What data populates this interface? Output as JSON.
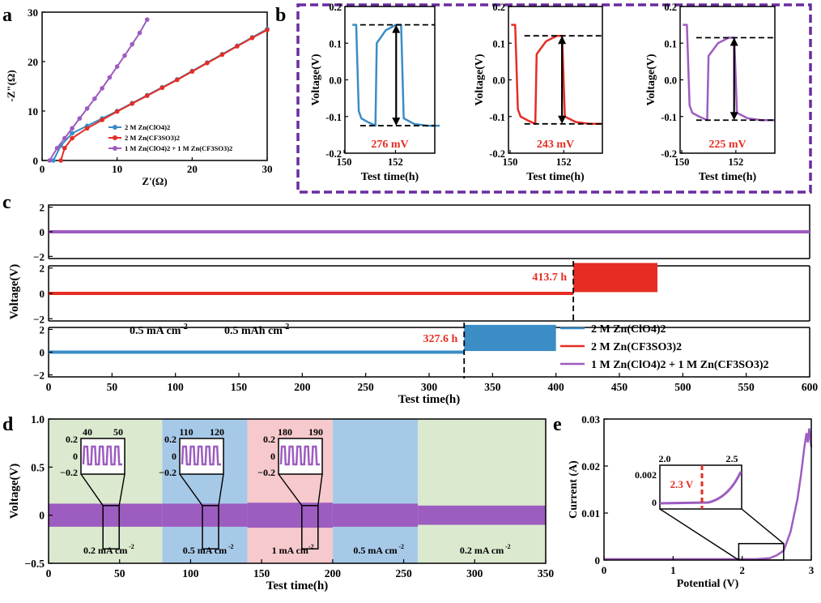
{
  "colors": {
    "blue": "#3a8dc5",
    "red": "#e52d23",
    "purple": "#9d5cc0",
    "dash_box": "#6a2ca0",
    "green_bg": "#dbe9cf",
    "blue_bg": "#a7c9e8",
    "pink_bg": "#f6c9cc"
  },
  "panel_labels": [
    "a",
    "b",
    "c",
    "d",
    "e"
  ],
  "chart_data": [
    {
      "panel": "a",
      "type": "scatter",
      "xlabel": "Z'(Ω)",
      "ylabel": "-Z\"(Ω)",
      "xlim": [
        0,
        30
      ],
      "ylim": [
        0,
        30
      ],
      "xticks": [
        "0",
        "10",
        "20",
        "30"
      ],
      "yticks": [
        "0",
        "10",
        "20",
        "30"
      ],
      "series": [
        {
          "name": "2 M Zn(ClO4)2",
          "color": "blue",
          "x": [
            1.5,
            2.5,
            4,
            6,
            8,
            10,
            12,
            14,
            16,
            18,
            20,
            22,
            24,
            26,
            28,
            30
          ],
          "y": [
            0,
            3,
            5.5,
            7,
            8.5,
            10,
            11.6,
            13.2,
            14.8,
            16.4,
            18.1,
            19.8,
            21.5,
            23.2,
            24.9,
            26.6
          ]
        },
        {
          "name": "2 M Zn(CF3SO3)2",
          "color": "red",
          "x": [
            2.5,
            3,
            4,
            6,
            8,
            10,
            12,
            14,
            16,
            18,
            20,
            22,
            24,
            26,
            28,
            30
          ],
          "y": [
            0,
            2.5,
            4.5,
            6.5,
            8.2,
            9.9,
            11.5,
            13.1,
            14.7,
            16.3,
            18,
            19.7,
            21.4,
            23.1,
            24.8,
            26.4
          ]
        },
        {
          "name": "1 M Zn(ClO4)2 + 1 M Zn(CF3SO3)2",
          "color": "purple",
          "x": [
            1,
            2,
            3,
            4,
            5,
            6,
            7,
            8,
            9,
            10,
            11,
            12,
            13,
            14
          ],
          "y": [
            0,
            2.5,
            4.5,
            6.5,
            8.5,
            10.5,
            12.5,
            14.6,
            16.8,
            19,
            21.2,
            23.5,
            25.8,
            28.5
          ]
        }
      ]
    },
    {
      "panel": "b",
      "type": "line",
      "xlabel": "Test time(h)",
      "ylabel": "Voltage(V)",
      "xlim": [
        150,
        153.5
      ],
      "ylim": [
        -0.2,
        0.2
      ],
      "xticks": [
        "150",
        "152"
      ],
      "yticks": [
        "-0.2",
        "-0.1",
        "0.0",
        "0.1",
        "0.2"
      ],
      "subplots": [
        {
          "color": "blue",
          "hysteresis": "276 mV",
          "v_high": 0.15,
          "v_low": -0.125
        },
        {
          "color": "red",
          "hysteresis": "243 mV",
          "v_high": 0.12,
          "v_low": -0.12
        },
        {
          "color": "purple",
          "hysteresis": "225 mV",
          "v_high": 0.115,
          "v_low": -0.11
        }
      ]
    },
    {
      "panel": "c",
      "type": "line",
      "xlabel": "Test time(h)",
      "ylabel": "Voltage(V)",
      "xlim": [
        0,
        600
      ],
      "xticks": [
        "0",
        "50",
        "100",
        "150",
        "200",
        "250",
        "300",
        "350",
        "400",
        "450",
        "500",
        "550",
        "600"
      ],
      "sub_yticks": [
        "-2",
        "0",
        "2"
      ],
      "condition_1": "0.5 mA cm",
      "condition_2": "0.5 mAh cm",
      "exponent": "-2",
      "series": [
        {
          "name": "1 M Zn(ClO4)2 + 1 M Zn(CF3SO3)2",
          "color": "purple",
          "stable_until": 600
        },
        {
          "name": "2 M Zn(CF3SO3)2",
          "color": "red",
          "stable_until": 413.7,
          "end": 480,
          "marker": "413.7 h"
        },
        {
          "name": "2 M Zn(ClO4)2",
          "color": "blue",
          "stable_until": 327.6,
          "end": 400,
          "marker": "327.6 h"
        }
      ]
    },
    {
      "panel": "d",
      "type": "line",
      "xlabel": "Test time(h)",
      "ylabel": "Voltage(V)",
      "xlim": [
        0,
        350
      ],
      "ylim": [
        -0.5,
        1.0
      ],
      "xticks": [
        "0",
        "50",
        "100",
        "150",
        "200",
        "250",
        "300",
        "350"
      ],
      "yticks": [
        "-0.5",
        "0",
        "0.5",
        "1.0"
      ],
      "segments": [
        {
          "start": 0,
          "end": 80,
          "label": "0.2 mA cm",
          "bg": "green_bg"
        },
        {
          "start": 80,
          "end": 140,
          "label": "0.5 mA cm",
          "bg": "blue_bg"
        },
        {
          "start": 140,
          "end": 200,
          "label": "1 mA cm",
          "bg": "pink_bg"
        },
        {
          "start": 200,
          "end": 260,
          "label": "0.5 mA cm",
          "bg": "blue_bg"
        },
        {
          "start": 260,
          "end": 350,
          "label": "0.2 mA cm",
          "bg": "green_bg"
        }
      ],
      "exponent": "-2",
      "insets": [
        {
          "xticks": [
            "40",
            "50"
          ],
          "yticks": [
            "0.2",
            "0",
            "-0.2"
          ],
          "center": 44
        },
        {
          "xticks": [
            "110",
            "120"
          ],
          "yticks": [
            "0.2",
            "0",
            "-0.2"
          ],
          "center": 114
        },
        {
          "xticks": [
            "180",
            "190"
          ],
          "yticks": [
            "0.2",
            "0",
            "-0.2"
          ],
          "center": 184
        }
      ]
    },
    {
      "panel": "e",
      "type": "line",
      "xlabel": "Potential (V)",
      "ylabel": "Current (A)",
      "xlim": [
        0,
        3
      ],
      "ylim": [
        0,
        0.03
      ],
      "xticks": [
        "0",
        "1",
        "2",
        "3"
      ],
      "yticks": [
        "0",
        "0.01",
        "0.02",
        "0.03"
      ],
      "onset_label": "2.3 V",
      "inset": {
        "xticks": [
          "2.0",
          "2.5"
        ],
        "yticks": [
          "0",
          "0.002"
        ]
      }
    }
  ]
}
